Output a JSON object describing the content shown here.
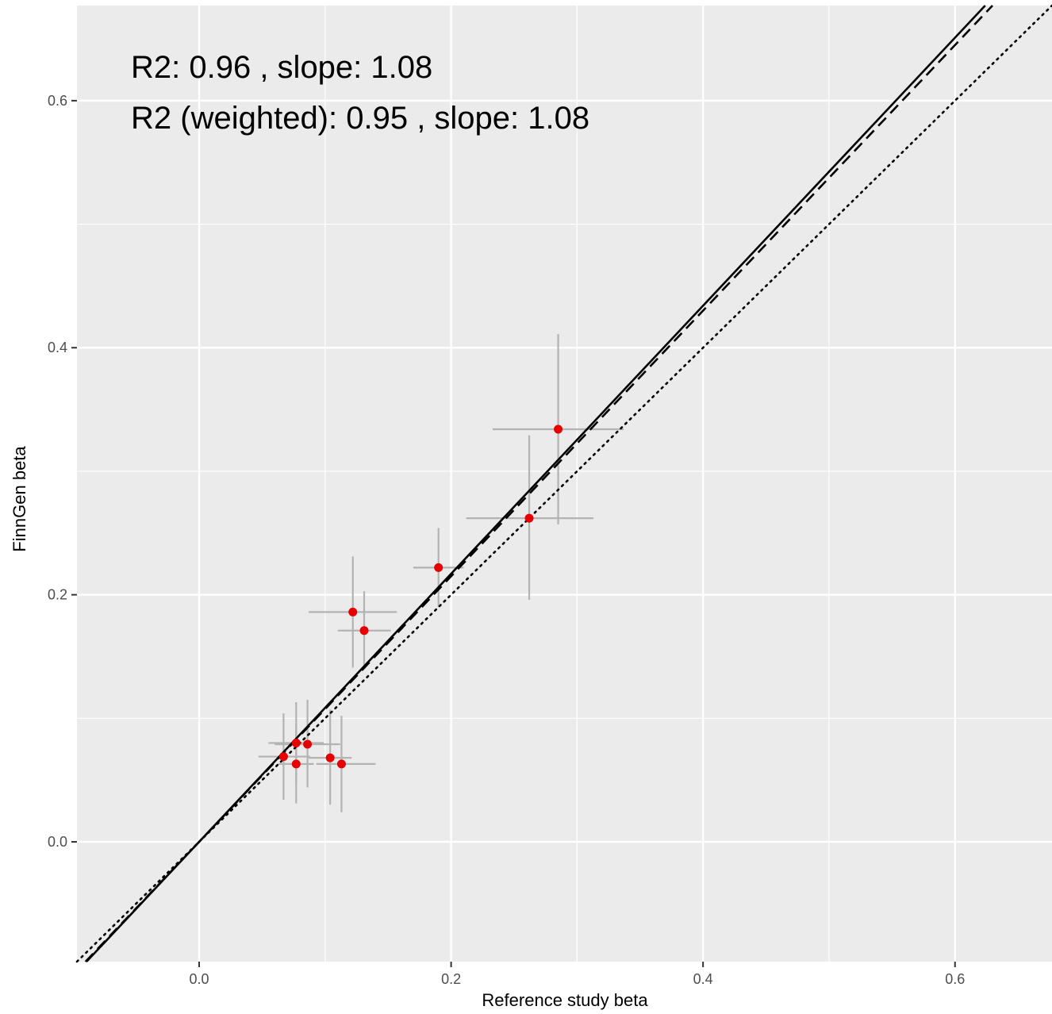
{
  "chart_data": {
    "type": "scatter",
    "title": "",
    "xlabel": "Reference study beta",
    "ylabel": "FinnGen beta",
    "xlim": [
      -0.097,
      0.677
    ],
    "ylim": [
      -0.097,
      0.677
    ],
    "x_ticks": [
      0.0,
      0.2,
      0.4,
      0.6
    ],
    "x_tick_labels": [
      "0.0",
      "0.2",
      "0.4",
      "0.6"
    ],
    "y_ticks": [
      0.0,
      0.2,
      0.4,
      0.6
    ],
    "y_tick_labels": [
      "0.0",
      "0.2",
      "0.4",
      "0.6"
    ],
    "grid": true,
    "legend": "none",
    "annotations": [
      "R2: 0.96 , slope: 1.08",
      "R2 (weighted): 0.95 , slope: 1.08"
    ],
    "points": [
      {
        "x": 0.285,
        "y": 0.334,
        "x_lo": 0.233,
        "x_hi": 0.337,
        "y_lo": 0.257,
        "y_hi": 0.411
      },
      {
        "x": 0.262,
        "y": 0.262,
        "x_lo": 0.212,
        "x_hi": 0.313,
        "y_lo": 0.196,
        "y_hi": 0.329
      },
      {
        "x": 0.19,
        "y": 0.222,
        "x_lo": 0.17,
        "x_hi": 0.21,
        "y_lo": 0.19,
        "y_hi": 0.254
      },
      {
        "x": 0.122,
        "y": 0.186,
        "x_lo": 0.087,
        "x_hi": 0.157,
        "y_lo": 0.141,
        "y_hi": 0.231
      },
      {
        "x": 0.131,
        "y": 0.171,
        "x_lo": 0.11,
        "x_hi": 0.152,
        "y_lo": 0.14,
        "y_hi": 0.203
      },
      {
        "x": 0.077,
        "y": 0.08,
        "x_lo": 0.055,
        "x_hi": 0.099,
        "y_lo": 0.047,
        "y_hi": 0.113
      },
      {
        "x": 0.086,
        "y": 0.079,
        "x_lo": 0.06,
        "x_hi": 0.112,
        "y_lo": 0.044,
        "y_hi": 0.115
      },
      {
        "x": 0.067,
        "y": 0.069,
        "x_lo": 0.047,
        "x_hi": 0.088,
        "y_lo": 0.034,
        "y_hi": 0.104
      },
      {
        "x": 0.077,
        "y": 0.063,
        "x_lo": 0.063,
        "x_hi": 0.091,
        "y_lo": 0.031,
        "y_hi": 0.095
      },
      {
        "x": 0.104,
        "y": 0.068,
        "x_lo": 0.087,
        "x_hi": 0.121,
        "y_lo": 0.03,
        "y_hi": 0.107
      },
      {
        "x": 0.113,
        "y": 0.063,
        "x_lo": 0.093,
        "x_hi": 0.14,
        "y_lo": 0.024,
        "y_hi": 0.102
      }
    ],
    "lines": [
      {
        "style": "dotted",
        "slope": 1.0,
        "intercept": 0.0
      },
      {
        "style": "dashed",
        "slope": 1.075,
        "intercept": 0.0
      },
      {
        "style": "solid",
        "slope": 1.085,
        "intercept": 0.0
      }
    ],
    "colors": {
      "panel_background": "#ebebeb",
      "grid": "#ffffff",
      "point": "#e60000",
      "error_bar": "#b3b3b3",
      "line": "#000000",
      "tick_text": "#4d4d4d"
    }
  }
}
